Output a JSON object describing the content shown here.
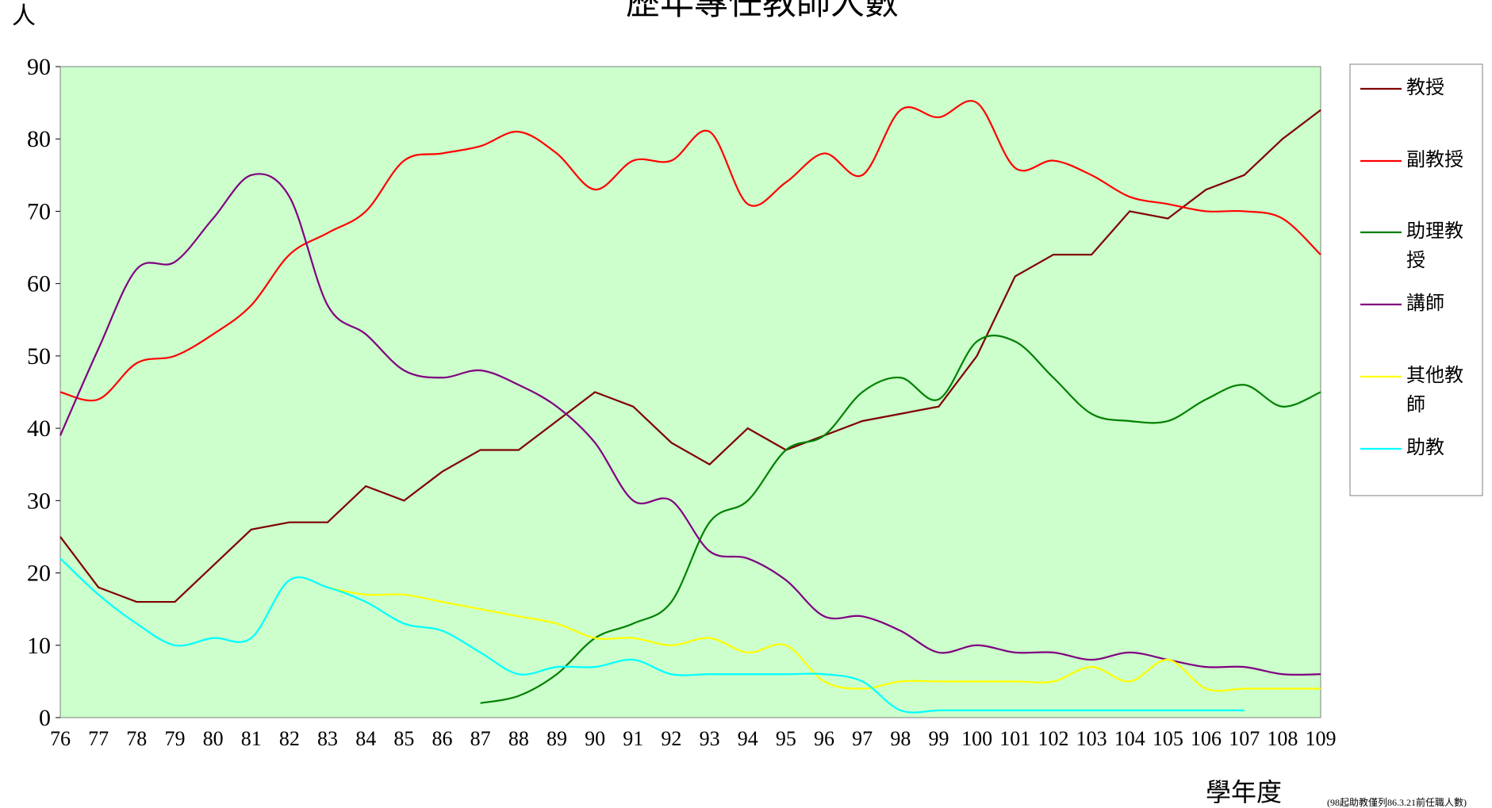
{
  "chart_data": {
    "type": "line",
    "title": "歷年專任教師人數",
    "ylabel": "人",
    "xlabel": "學年度",
    "note": "(98起助教僅列86.3.21前任職人數)",
    "categories": [
      "76",
      "77",
      "78",
      "79",
      "80",
      "81",
      "82",
      "83",
      "84",
      "85",
      "86",
      "87",
      "88",
      "89",
      "90",
      "91",
      "92",
      "93",
      "94",
      "95",
      "96",
      "97",
      "98",
      "99",
      "100",
      "101",
      "102",
      "103",
      "104",
      "105",
      "106",
      "107",
      "108",
      "109"
    ],
    "ylim": [
      0,
      90
    ],
    "yticks": [
      0,
      10,
      20,
      30,
      40,
      50,
      60,
      70,
      80,
      90
    ],
    "legend": "right",
    "background": "#ccffcc",
    "series": [
      {
        "name": "教授",
        "color": "#800000",
        "smooth": false,
        "values": [
          25,
          18,
          16,
          16,
          21,
          26,
          27,
          27,
          32,
          30,
          34,
          37,
          37,
          41,
          45,
          43,
          38,
          35,
          40,
          37,
          39,
          41,
          42,
          43,
          50,
          61,
          64,
          64,
          70,
          69,
          73,
          75,
          80,
          84
        ]
      },
      {
        "name": "副教授",
        "color": "#ff0000",
        "smooth": true,
        "values": [
          45,
          44,
          49,
          50,
          53,
          57,
          64,
          67,
          70,
          77,
          78,
          79,
          81,
          78,
          73,
          77,
          77,
          81,
          71,
          74,
          78,
          75,
          84,
          83,
          85,
          76,
          77,
          75,
          72,
          71,
          70,
          70,
          69,
          64
        ]
      },
      {
        "name": "助理教授",
        "color": "#008000",
        "smooth": true,
        "values": [
          null,
          null,
          null,
          null,
          null,
          null,
          null,
          null,
          null,
          null,
          null,
          2,
          3,
          6,
          11,
          13,
          16,
          27,
          30,
          37,
          39,
          45,
          47,
          44,
          52,
          52,
          47,
          42,
          41,
          41,
          44,
          46,
          43,
          45
        ]
      },
      {
        "name": "講師",
        "color": "#800080",
        "smooth": true,
        "values": [
          39,
          51,
          62,
          63,
          69,
          75,
          72,
          57,
          53,
          48,
          47,
          48,
          46,
          43,
          38,
          30,
          30,
          23,
          22,
          19,
          14,
          14,
          12,
          9,
          10,
          9,
          9,
          8,
          9,
          8,
          7,
          7,
          6,
          6
        ]
      },
      {
        "name": "其他教師",
        "color": "#ffff00",
        "smooth": true,
        "values": [
          null,
          null,
          null,
          null,
          null,
          null,
          null,
          18,
          17,
          17,
          16,
          15,
          14,
          13,
          11,
          11,
          10,
          11,
          9,
          10,
          5,
          4,
          5,
          5,
          5,
          5,
          5,
          7,
          5,
          8,
          4,
          4,
          4,
          4
        ]
      },
      {
        "name": "助教",
        "color": "#00ffff",
        "smooth": true,
        "values": [
          22,
          17,
          13,
          10,
          11,
          11,
          19,
          18,
          16,
          13,
          12,
          9,
          6,
          7,
          7,
          8,
          6,
          6,
          6,
          6,
          6,
          5,
          1,
          1,
          1,
          1,
          1,
          1,
          1,
          1,
          1,
          1,
          null,
          null
        ]
      }
    ]
  }
}
